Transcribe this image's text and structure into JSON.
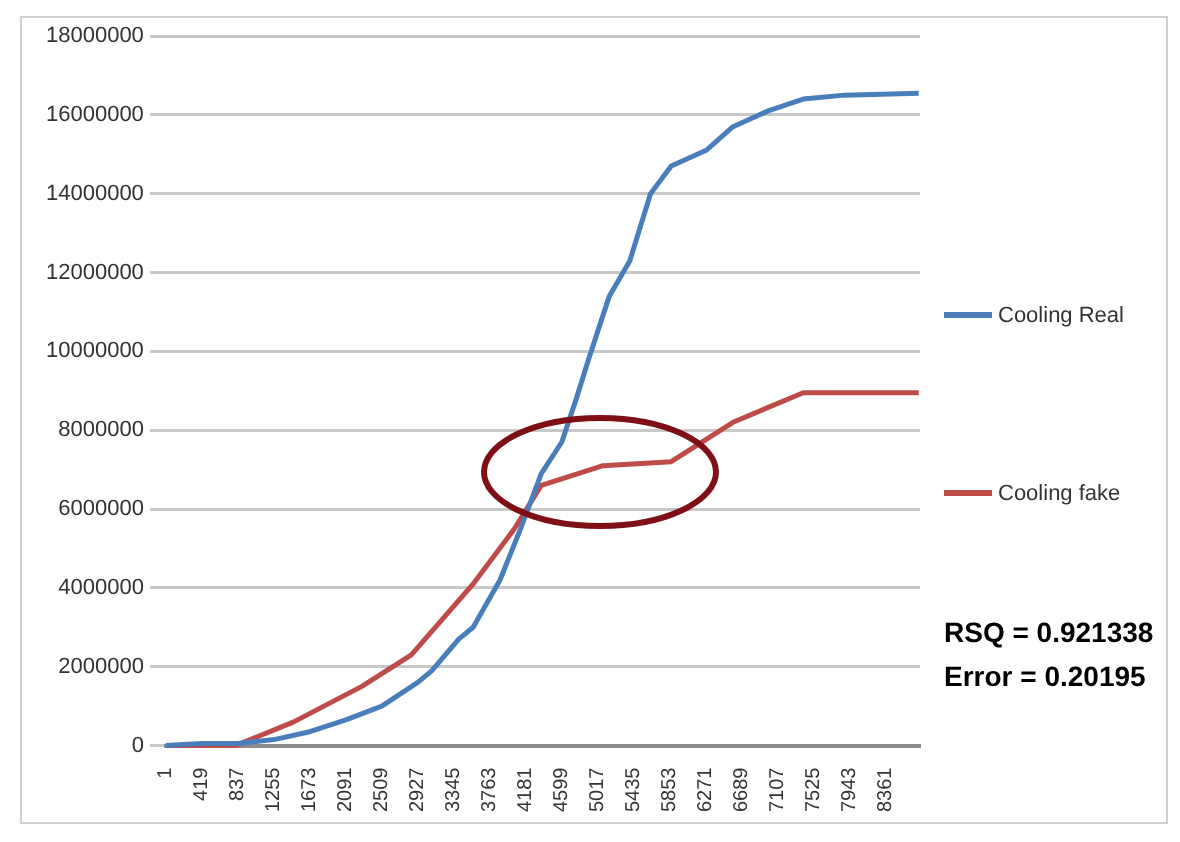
{
  "chart_data": {
    "type": "line",
    "series": [
      {
        "name": "Cooling Real",
        "color": "#4a7ebb",
        "x": [
          1,
          419,
          837,
          1255,
          1673,
          2091,
          2509,
          2927,
          3091,
          3402,
          3570,
          3882,
          4121,
          4361,
          4600,
          4768,
          4911,
          5151,
          5390,
          5630,
          5870,
          6277,
          6588,
          6996,
          7403,
          7883,
          8745
        ],
        "values": [
          0,
          50000,
          50000,
          150000,
          350000,
          650000,
          1000000,
          1600000,
          1900000,
          2700000,
          3000000,
          4200000,
          5500000,
          6900000,
          7700000,
          8800000,
          9800000,
          11400000,
          12300000,
          14000000,
          14700000,
          15100000,
          15700000,
          16100000,
          16400000,
          16500000,
          16550000
        ]
      },
      {
        "name": "Cooling fake",
        "color": "#be4b48",
        "x": [
          1,
          815,
          1486,
          2277,
          2852,
          3570,
          4049,
          4361,
          5079,
          5870,
          6588,
          7403,
          8745
        ],
        "values": [
          0,
          0,
          600000,
          1500000,
          2300000,
          4100000,
          5500000,
          6600000,
          7100000,
          7200000,
          8200000,
          8950000,
          8950000
        ]
      }
    ],
    "xlim": [
      1,
      8760
    ],
    "xticks": [
      1,
      419,
      837,
      1255,
      1673,
      2091,
      2509,
      2927,
      3345,
      3763,
      4181,
      4599,
      5017,
      5435,
      5853,
      6271,
      6689,
      7107,
      7525,
      7943,
      8361
    ],
    "ylim": [
      0,
      18000000
    ],
    "yticks": [
      0,
      2000000,
      4000000,
      6000000,
      8000000,
      10000000,
      12000000,
      14000000,
      16000000,
      18000000
    ],
    "grid": "y",
    "legend": "right",
    "marker": "none",
    "line_style": "solid",
    "annotations": [
      "RSQ = 0.921338",
      "Error = 0.20195"
    ]
  }
}
